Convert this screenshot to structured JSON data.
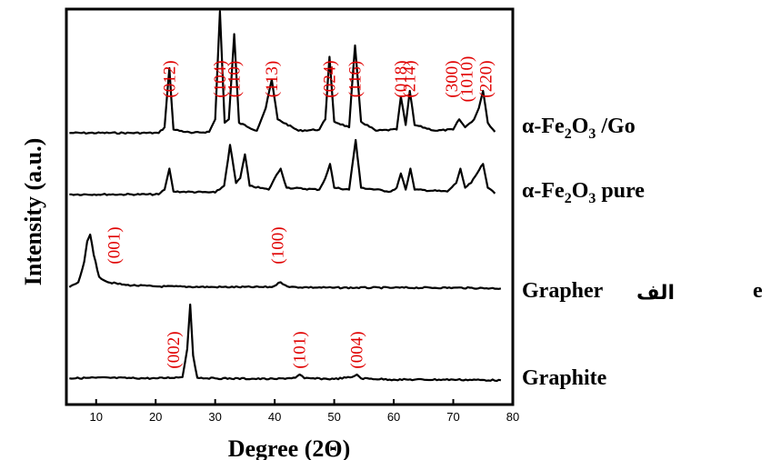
{
  "chart_data": {
    "type": "line",
    "title": "",
    "xlabel": "Degree (2Θ)",
    "ylabel": "Intensity (a.u.)",
    "xlim": [
      5,
      80
    ],
    "xticks": [
      "10",
      "20",
      "30",
      "40",
      "50",
      "60",
      "70",
      "80"
    ],
    "grid": false,
    "legend": "labels right of each trace",
    "line_color": "#000000",
    "peak_label_color": "#e00000",
    "series": [
      {
        "name_main": "α-Fe",
        "name_sub1": "2",
        "name_mid": "O",
        "name_sub2": "3",
        "name_tail": " /Go",
        "x": [
          5.5,
          20.5,
          21.5,
          22.3,
          23,
          26,
          29,
          30,
          30.8,
          31.6,
          32.3,
          33.2,
          34,
          37,
          38.5,
          39.5,
          40.5,
          44,
          47.5,
          48.5,
          49.2,
          50,
          52.5,
          53.5,
          54.5,
          57,
          60.5,
          61.2,
          62,
          62.7,
          63.5,
          67,
          70,
          71,
          72,
          73.5,
          74.3,
          75,
          75.8,
          77
        ],
        "y": [
          0.3,
          0.3,
          0.8,
          6,
          0.6,
          0.3,
          0.4,
          1.5,
          11,
          1.2,
          1.5,
          9,
          1.2,
          0.5,
          2.5,
          5,
          1.5,
          0.5,
          0.6,
          1.5,
          7,
          1.3,
          0.8,
          8,
          1.3,
          0.5,
          0.6,
          3.5,
          1,
          4,
          1,
          0.5,
          0.6,
          1.5,
          0.8,
          1.5,
          2.5,
          4,
          1.2,
          0.4
        ],
        "peaks": [
          {
            "label": "(012)",
            "x": 22.3
          },
          {
            "label": "(104)",
            "x": 30.8
          },
          {
            "label": "(110)",
            "x": 33.2
          },
          {
            "label": "(113)",
            "x": 39.5
          },
          {
            "label": "(024)",
            "x": 49.2
          },
          {
            "label": "(116)",
            "x": 53.5
          },
          {
            "label": "(018)",
            "x": 61.2
          },
          {
            "label": "(214)",
            "x": 62.7
          },
          {
            "label": "(300)",
            "x": 69.8
          },
          {
            "label": "(1010)",
            "x": 72.3
          },
          {
            "label": "(220)",
            "x": 75.5
          }
        ]
      },
      {
        "name_main": "α-Fe",
        "name_sub1": "2",
        "name_mid": "O",
        "name_sub2": "3",
        "name_tail": " pure",
        "x": [
          5.5,
          20.5,
          21.5,
          22.3,
          23,
          30,
          31.5,
          32.5,
          33.5,
          34.2,
          35,
          35.8,
          39,
          40,
          41,
          42,
          47.5,
          48.5,
          49.3,
          50,
          52.5,
          53.6,
          54.5,
          59.5,
          60.5,
          61.2,
          62,
          62.8,
          63.5,
          69,
          70.5,
          71.2,
          72,
          73,
          74,
          75,
          75.8,
          77
        ],
        "y": [
          0.3,
          0.3,
          0.8,
          3,
          0.6,
          0.5,
          1.2,
          5.5,
          1.5,
          2,
          4.5,
          1.2,
          0.8,
          2,
          3,
          1,
          0.8,
          2,
          3.5,
          1,
          0.8,
          6,
          1,
          0.6,
          1,
          2.5,
          0.8,
          3,
          0.8,
          0.6,
          1.5,
          3,
          1,
          1.5,
          2.5,
          3.5,
          1,
          0.4
        ]
      },
      {
        "name_main": "Grapher",
        "name_sub1": "",
        "name_mid": "",
        "name_sub2": "",
        "name_tail": "",
        "overlay_word": "الف",
        "trailing_text": "e",
        "x": [
          5.5,
          7,
          8,
          8.5,
          9,
          9.6,
          10.5,
          12,
          15,
          20,
          30,
          39.5,
          41,
          42.5,
          50,
          60,
          70,
          78
        ],
        "y": [
          0.3,
          1,
          4,
          7,
          8,
          5,
          1.8,
          1,
          0.6,
          0.4,
          0.3,
          0.3,
          1,
          0.3,
          0.2,
          0.2,
          0.2,
          0.1
        ],
        "peaks": [
          {
            "label": "(001)",
            "x": 13
          },
          {
            "label": "(100)",
            "x": 40.5
          }
        ]
      },
      {
        "name_main": "Graphite",
        "name_sub1": "",
        "name_mid": "",
        "name_sub2": "",
        "name_tail": "",
        "x": [
          5.5,
          10,
          20,
          24.5,
          25.3,
          25.8,
          26.3,
          27,
          30,
          40,
          43.5,
          44.2,
          45,
          50,
          53,
          53.8,
          54.5,
          60,
          70,
          78
        ],
        "y": [
          0.4,
          0.5,
          0.4,
          0.6,
          5,
          12,
          4,
          0.5,
          0.4,
          0.3,
          0.5,
          1,
          0.4,
          0.3,
          0.6,
          1,
          0.4,
          0.2,
          0.2,
          0.1
        ],
        "peaks": [
          {
            "label": "(002)",
            "x": 23
          },
          {
            "label": "(101)",
            "x": 44.2
          },
          {
            "label": "(004)",
            "x": 53.8
          }
        ]
      }
    ]
  }
}
